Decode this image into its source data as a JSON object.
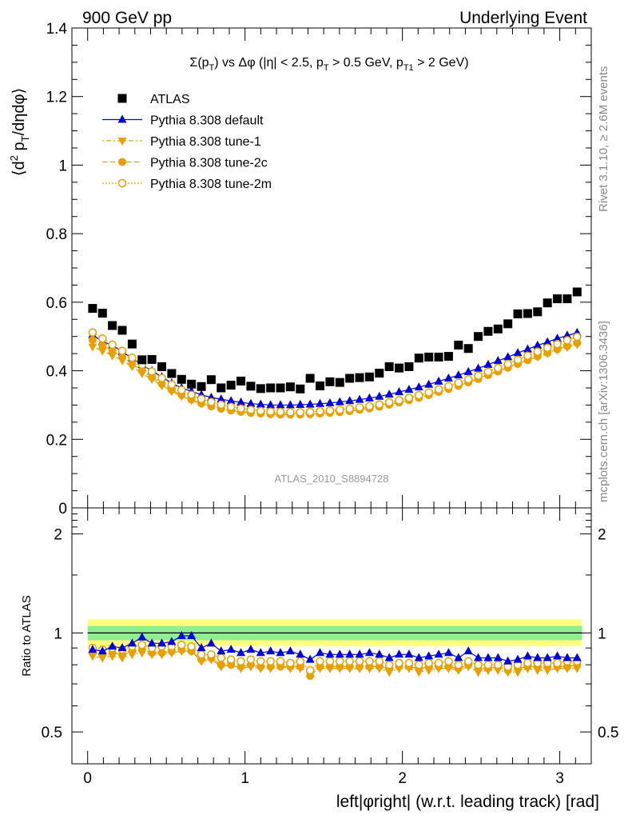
{
  "header": {
    "left": "900 GeV pp",
    "right": "Underlying Event"
  },
  "side_labels": {
    "rivet": "Rivet 3.1.10, ≥ 2.6M events",
    "mcplots": "mcplots.cern.ch [arXiv:1306.3436]"
  },
  "analysis_id": "ATLAS_2010_S8894728",
  "title": "Σ(p_T) vs Δφ (|η| < 2.5, p_T > 0.5 GeV, p_T1 > 2 GeV)",
  "title_parts": {
    "a": "Σ(p",
    "a_sub": "T",
    "b": ") vs Δφ (|η| < 2.5, p",
    "b_sub": "T",
    "c": " > 0.5 GeV, p",
    "c_sub": "T1",
    "d": " > 2 GeV)"
  },
  "ylabel_parts": {
    "a": "⟨d",
    "sup": "2",
    "b": " p",
    "sub": "T",
    "c": "/dηdφ⟩"
  },
  "colors": {
    "atlas": "#000000",
    "default": "#0000dd",
    "tunes": "#e8a000",
    "band_inner": "#90ee90",
    "band_outer": "#ffff80"
  },
  "chart_data": [
    {
      "type": "scatter",
      "xlabel": "left|φright| (w.r.t. leading track) [rad]",
      "ylabel": "⟨d2 pT/dηdφ⟩",
      "xlim": [
        -0.1,
        3.2
      ],
      "ylim": [
        0,
        1.4
      ],
      "yticks": [
        "0",
        "0.2",
        "0.4",
        "0.6",
        "0.8",
        "1",
        "1.2",
        "1.4"
      ],
      "x_bins": {
        "n": 50,
        "first": 0.0314,
        "last": 3.1102
      },
      "legend": [
        "ATLAS",
        "Pythia 8.308 default",
        "Pythia 8.308 tune-1",
        "Pythia 8.308 tune-2c",
        "Pythia 8.308 tune-2m"
      ],
      "legend_position": "top-left",
      "series": [
        {
          "name": "ATLAS",
          "marker": "square",
          "values": [
            0.582,
            0.568,
            0.532,
            0.518,
            0.478,
            0.432,
            0.433,
            0.412,
            0.392,
            0.375,
            0.361,
            0.354,
            0.374,
            0.35,
            0.358,
            0.37,
            0.355,
            0.348,
            0.35,
            0.35,
            0.353,
            0.347,
            0.378,
            0.356,
            0.368,
            0.366,
            0.378,
            0.38,
            0.382,
            0.393,
            0.412,
            0.408,
            0.412,
            0.437,
            0.44,
            0.44,
            0.442,
            0.475,
            0.465,
            0.5,
            0.515,
            0.522,
            0.537,
            0.566,
            0.567,
            0.572,
            0.598,
            0.61,
            0.61,
            0.63
          ]
        },
        {
          "name": "Pythia 8.308 default",
          "marker": "triangle-up",
          "values": [
            0.505,
            0.485,
            0.475,
            0.455,
            0.437,
            0.417,
            0.4,
            0.382,
            0.364,
            0.35,
            0.34,
            0.33,
            0.322,
            0.317,
            0.312,
            0.308,
            0.304,
            0.302,
            0.3,
            0.3,
            0.3,
            0.301,
            0.302,
            0.304,
            0.306,
            0.309,
            0.312,
            0.316,
            0.32,
            0.325,
            0.331,
            0.338,
            0.345,
            0.352,
            0.36,
            0.369,
            0.378,
            0.387,
            0.397,
            0.407,
            0.418,
            0.429,
            0.44,
            0.452,
            0.463,
            0.474,
            0.484,
            0.494,
            0.503,
            0.511
          ]
        },
        {
          "name": "Pythia 8.308 tune-1",
          "marker": "triangle-down",
          "values": [
            0.47,
            0.458,
            0.444,
            0.43,
            0.412,
            0.392,
            0.375,
            0.357,
            0.34,
            0.326,
            0.314,
            0.304,
            0.297,
            0.291,
            0.287,
            0.283,
            0.28,
            0.278,
            0.277,
            0.276,
            0.276,
            0.276,
            0.277,
            0.279,
            0.281,
            0.283,
            0.286,
            0.29,
            0.294,
            0.299,
            0.305,
            0.311,
            0.318,
            0.325,
            0.333,
            0.341,
            0.35,
            0.359,
            0.369,
            0.378,
            0.389,
            0.399,
            0.41,
            0.42,
            0.431,
            0.441,
            0.451,
            0.461,
            0.469,
            0.477
          ]
        },
        {
          "name": "Pythia 8.308 tune-2c",
          "marker": "circle",
          "values": [
            0.49,
            0.474,
            0.458,
            0.44,
            0.42,
            0.4,
            0.381,
            0.362,
            0.344,
            0.329,
            0.316,
            0.305,
            0.296,
            0.289,
            0.284,
            0.28,
            0.277,
            0.275,
            0.273,
            0.272,
            0.272,
            0.272,
            0.273,
            0.275,
            0.277,
            0.279,
            0.282,
            0.286,
            0.29,
            0.295,
            0.301,
            0.307,
            0.314,
            0.321,
            0.329,
            0.338,
            0.347,
            0.356,
            0.366,
            0.376,
            0.387,
            0.398,
            0.409,
            0.42,
            0.431,
            0.442,
            0.452,
            0.463,
            0.472,
            0.481
          ]
        },
        {
          "name": "Pythia 8.308 tune-2m",
          "marker": "circle-open",
          "values": [
            0.512,
            0.494,
            0.476,
            0.458,
            0.438,
            0.418,
            0.398,
            0.379,
            0.36,
            0.344,
            0.33,
            0.318,
            0.309,
            0.301,
            0.295,
            0.29,
            0.286,
            0.283,
            0.281,
            0.28,
            0.279,
            0.279,
            0.28,
            0.282,
            0.284,
            0.286,
            0.289,
            0.293,
            0.297,
            0.302,
            0.308,
            0.314,
            0.321,
            0.329,
            0.337,
            0.346,
            0.355,
            0.365,
            0.375,
            0.386,
            0.397,
            0.408,
            0.42,
            0.432,
            0.444,
            0.456,
            0.467,
            0.478,
            0.489,
            0.499
          ]
        }
      ]
    },
    {
      "type": "scatter",
      "ylabel": "Ratio to ATLAS",
      "xlim": [
        -0.1,
        3.2
      ],
      "ylim": [
        0.4,
        2.4
      ],
      "log_y": true,
      "yticks": [
        "0.5",
        "1",
        "2"
      ],
      "xticks": [
        "0",
        "1",
        "2",
        "3"
      ],
      "band_inner": [
        0.95,
        1.05
      ],
      "band_outer": [
        0.91,
        1.1
      ],
      "series": [
        {
          "name": "Pythia 8.308 default",
          "values": [
            0.89,
            0.88,
            0.91,
            0.9,
            0.93,
            0.97,
            0.93,
            0.93,
            0.94,
            0.98,
            0.98,
            0.9,
            0.93,
            0.88,
            0.89,
            0.87,
            0.89,
            0.87,
            0.88,
            0.87,
            0.88,
            0.86,
            0.83,
            0.87,
            0.86,
            0.86,
            0.86,
            0.86,
            0.87,
            0.86,
            0.84,
            0.86,
            0.86,
            0.84,
            0.85,
            0.86,
            0.87,
            0.84,
            0.88,
            0.84,
            0.84,
            0.84,
            0.82,
            0.83,
            0.85,
            0.84,
            0.84,
            0.85,
            0.84,
            0.84
          ]
        },
        {
          "name": "Pythia 8.308 tune-1",
          "values": [
            0.85,
            0.84,
            0.85,
            0.84,
            0.86,
            0.87,
            0.86,
            0.86,
            0.87,
            0.88,
            0.88,
            0.82,
            0.83,
            0.79,
            0.8,
            0.78,
            0.79,
            0.78,
            0.78,
            0.79,
            0.78,
            0.78,
            0.76,
            0.78,
            0.78,
            0.78,
            0.78,
            0.78,
            0.78,
            0.78,
            0.76,
            0.78,
            0.78,
            0.76,
            0.77,
            0.78,
            0.78,
            0.77,
            0.79,
            0.76,
            0.77,
            0.77,
            0.76,
            0.76,
            0.78,
            0.77,
            0.77,
            0.78,
            0.78,
            0.78
          ]
        },
        {
          "name": "Pythia 8.308 tune-2c",
          "values": [
            0.87,
            0.86,
            0.87,
            0.86,
            0.88,
            0.89,
            0.87,
            0.87,
            0.88,
            0.89,
            0.88,
            0.83,
            0.84,
            0.8,
            0.8,
            0.79,
            0.8,
            0.79,
            0.79,
            0.79,
            0.79,
            0.79,
            0.74,
            0.79,
            0.79,
            0.79,
            0.79,
            0.79,
            0.79,
            0.79,
            0.78,
            0.79,
            0.79,
            0.78,
            0.79,
            0.79,
            0.79,
            0.78,
            0.8,
            0.78,
            0.78,
            0.79,
            0.77,
            0.78,
            0.79,
            0.79,
            0.79,
            0.79,
            0.79,
            0.8
          ]
        },
        {
          "name": "Pythia 8.308 tune-2m",
          "values": [
            0.9,
            0.89,
            0.9,
            0.89,
            0.91,
            0.92,
            0.9,
            0.91,
            0.91,
            0.92,
            0.91,
            0.86,
            0.86,
            0.84,
            0.83,
            0.82,
            0.83,
            0.82,
            0.82,
            0.82,
            0.81,
            0.82,
            0.77,
            0.82,
            0.82,
            0.82,
            0.82,
            0.82,
            0.82,
            0.82,
            0.8,
            0.81,
            0.81,
            0.8,
            0.81,
            0.81,
            0.82,
            0.8,
            0.82,
            0.8,
            0.8,
            0.8,
            0.79,
            0.8,
            0.81,
            0.81,
            0.81,
            0.81,
            0.82,
            0.82
          ]
        }
      ]
    }
  ]
}
